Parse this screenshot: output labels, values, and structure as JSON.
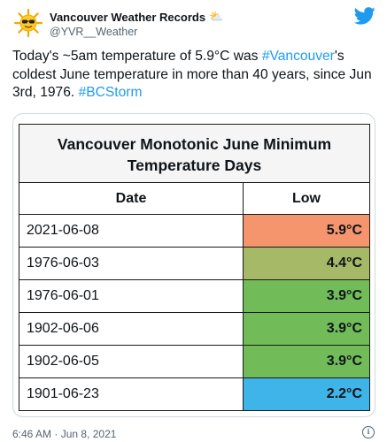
{
  "tweet": {
    "display_name": "Vancouver Weather Records",
    "name_emoji": "⛅",
    "handle": "@YVR__Weather",
    "text_part1": "Today's ~5am temperature of 5.9°C was ",
    "hashtag1": "#Vancouver",
    "text_part2": "'s coldest June temperature in more than 40 years, since Jun 3rd, 1976. ",
    "hashtag2": "#BCStorm",
    "timestamp": "6:46 AM · Jun 8, 2021",
    "info_glyph": "i"
  },
  "table": {
    "title": "Vancouver Monotonic June Minimum Temperature Days",
    "columns": [
      "Date",
      "Low"
    ],
    "rows": [
      {
        "date": "2021-06-08",
        "low": "5.9°C",
        "color": "#f4956d"
      },
      {
        "date": "1976-06-03",
        "low": "4.4°C",
        "color": "#a5b966"
      },
      {
        "date": "1976-06-01",
        "low": "3.9°C",
        "color": "#71bc58"
      },
      {
        "date": "1902-06-06",
        "low": "3.9°C",
        "color": "#71bc58"
      },
      {
        "date": "1902-06-05",
        "low": "3.9°C",
        "color": "#71bc58"
      },
      {
        "date": "1901-06-23",
        "low": "2.2°C",
        "color": "#3fb4e8"
      }
    ]
  },
  "colors": {
    "link": "#1d9bf0",
    "twitter_bird": "#1d9bf0",
    "secondary_text": "#536471"
  }
}
